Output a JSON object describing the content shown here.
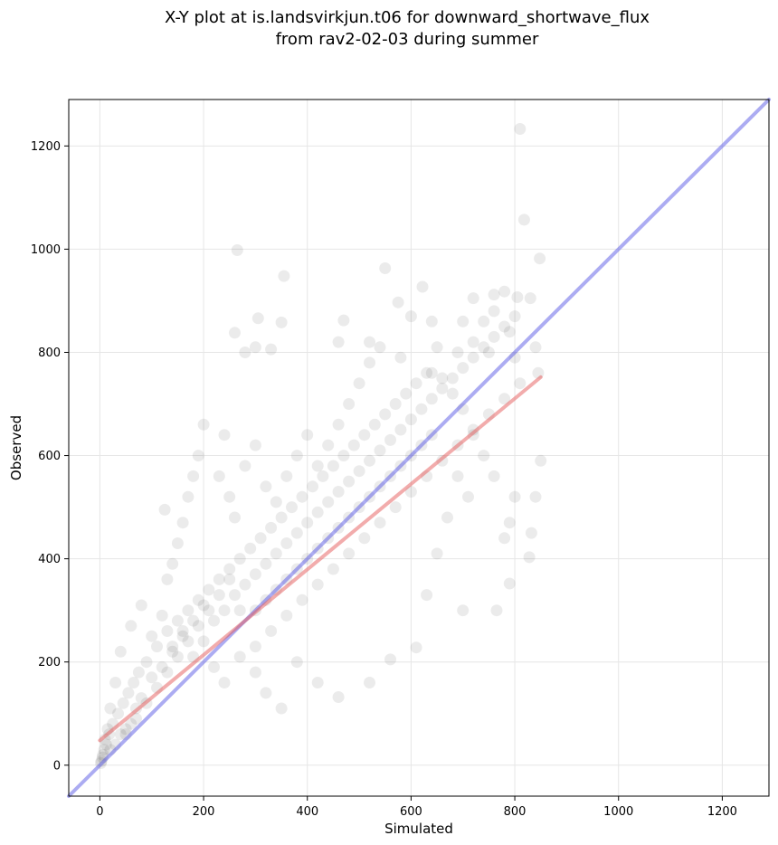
{
  "chart_data": {
    "type": "scatter",
    "title": "X-Y plot at is.landsvirkjun.t06 for downward_shortwave_flux",
    "subtitle": "from rav2-02-03 during summer",
    "xlabel": "Simulated",
    "ylabel": "Observed",
    "xlim": [
      -60,
      1290
    ],
    "ylim": [
      -60,
      1290
    ],
    "xticks": [
      0,
      200,
      400,
      600,
      800,
      1000,
      1200
    ],
    "yticks": [
      0,
      200,
      400,
      600,
      800,
      1000,
      1200
    ],
    "grid": true,
    "colors": {
      "points": "#000000",
      "identity_line": "#5a5ae6",
      "regression_line": "#e65a5a",
      "grid": "#e6e6e6"
    },
    "identity_line": {
      "x": [
        -60,
        1290
      ],
      "y": [
        -60,
        1290
      ]
    },
    "regression_line": {
      "x": [
        0,
        850
      ],
      "y": [
        48,
        752
      ]
    },
    "series": [
      {
        "marker": "circle",
        "opacity": 0.08,
        "points": [
          [
            810,
            1233
          ],
          [
            818,
            1057
          ],
          [
            848,
            982
          ],
          [
            265,
            998
          ],
          [
            355,
            948
          ],
          [
            550,
            963
          ],
          [
            622,
            927
          ],
          [
            575,
            897
          ],
          [
            720,
            905
          ],
          [
            760,
            912
          ],
          [
            780,
            918
          ],
          [
            805,
            907
          ],
          [
            830,
            905
          ],
          [
            305,
            866
          ],
          [
            350,
            858
          ],
          [
            470,
            862
          ],
          [
            260,
            838
          ],
          [
            520,
            820
          ],
          [
            600,
            870
          ],
          [
            640,
            860
          ],
          [
            700,
            860
          ],
          [
            740,
            860
          ],
          [
            760,
            880
          ],
          [
            790,
            840
          ],
          [
            840,
            810
          ],
          [
            280,
            800
          ],
          [
            300,
            810
          ],
          [
            330,
            806
          ],
          [
            460,
            820
          ],
          [
            540,
            810
          ],
          [
            580,
            790
          ],
          [
            650,
            810
          ],
          [
            690,
            800
          ],
          [
            720,
            820
          ],
          [
            750,
            800
          ],
          [
            800,
            790
          ],
          [
            845,
            760
          ],
          [
            850,
            590
          ],
          [
            840,
            520
          ],
          [
            832,
            450
          ],
          [
            828,
            403
          ],
          [
            790,
            352
          ],
          [
            765,
            300
          ],
          [
            700,
            300
          ],
          [
            800,
            520
          ],
          [
            790,
            470
          ],
          [
            780,
            440
          ],
          [
            760,
            560
          ],
          [
            740,
            600
          ],
          [
            720,
            640
          ],
          [
            700,
            690
          ],
          [
            680,
            720
          ],
          [
            660,
            750
          ],
          [
            640,
            760
          ],
          [
            710,
            520
          ],
          [
            690,
            560
          ],
          [
            670,
            480
          ],
          [
            650,
            410
          ],
          [
            630,
            330
          ],
          [
            610,
            228
          ],
          [
            560,
            205
          ],
          [
            520,
            160
          ],
          [
            460,
            132
          ],
          [
            420,
            160
          ],
          [
            380,
            200
          ],
          [
            350,
            110
          ],
          [
            320,
            140
          ],
          [
            300,
            180
          ],
          [
            270,
            210
          ],
          [
            240,
            160
          ],
          [
            220,
            190
          ],
          [
            200,
            240
          ],
          [
            180,
            210
          ],
          [
            160,
            260
          ],
          [
            140,
            230
          ],
          [
            120,
            290
          ],
          [
            100,
            250
          ],
          [
            80,
            310
          ],
          [
            60,
            270
          ],
          [
            40,
            220
          ],
          [
            30,
            160
          ],
          [
            20,
            110
          ],
          [
            15,
            70
          ],
          [
            10,
            50
          ],
          [
            8,
            30
          ],
          [
            5,
            15
          ],
          [
            3,
            8
          ],
          [
            2,
            4
          ],
          [
            6,
            20
          ],
          [
            12,
            40
          ],
          [
            18,
            60
          ],
          [
            25,
            80
          ],
          [
            35,
            100
          ],
          [
            45,
            120
          ],
          [
            55,
            140
          ],
          [
            65,
            160
          ],
          [
            75,
            180
          ],
          [
            90,
            200
          ],
          [
            110,
            230
          ],
          [
            130,
            260
          ],
          [
            150,
            280
          ],
          [
            170,
            300
          ],
          [
            190,
            320
          ],
          [
            210,
            340
          ],
          [
            230,
            360
          ],
          [
            250,
            380
          ],
          [
            270,
            400
          ],
          [
            290,
            420
          ],
          [
            310,
            440
          ],
          [
            330,
            460
          ],
          [
            350,
            480
          ],
          [
            370,
            500
          ],
          [
            390,
            520
          ],
          [
            410,
            540
          ],
          [
            430,
            560
          ],
          [
            450,
            580
          ],
          [
            470,
            600
          ],
          [
            490,
            620
          ],
          [
            510,
            640
          ],
          [
            530,
            660
          ],
          [
            550,
            680
          ],
          [
            570,
            700
          ],
          [
            590,
            720
          ],
          [
            610,
            740
          ],
          [
            630,
            760
          ],
          [
            200,
            660
          ],
          [
            190,
            600
          ],
          [
            180,
            560
          ],
          [
            170,
            520
          ],
          [
            160,
            470
          ],
          [
            150,
            430
          ],
          [
            140,
            390
          ],
          [
            130,
            360
          ],
          [
            125,
            495
          ],
          [
            250,
            520
          ],
          [
            240,
            640
          ],
          [
            230,
            560
          ],
          [
            260,
            480
          ],
          [
            280,
            580
          ],
          [
            300,
            620
          ],
          [
            320,
            540
          ],
          [
            340,
            510
          ],
          [
            360,
            560
          ],
          [
            380,
            600
          ],
          [
            400,
            640
          ],
          [
            420,
            580
          ],
          [
            440,
            620
          ],
          [
            460,
            660
          ],
          [
            480,
            700
          ],
          [
            500,
            740
          ],
          [
            520,
            780
          ],
          [
            300,
            300
          ],
          [
            320,
            320
          ],
          [
            340,
            340
          ],
          [
            360,
            360
          ],
          [
            380,
            380
          ],
          [
            400,
            400
          ],
          [
            420,
            420
          ],
          [
            440,
            440
          ],
          [
            460,
            460
          ],
          [
            480,
            480
          ],
          [
            500,
            500
          ],
          [
            520,
            520
          ],
          [
            540,
            540
          ],
          [
            560,
            560
          ],
          [
            580,
            580
          ],
          [
            600,
            600
          ],
          [
            620,
            620
          ],
          [
            640,
            640
          ],
          [
            300,
            230
          ],
          [
            330,
            260
          ],
          [
            360,
            290
          ],
          [
            390,
            320
          ],
          [
            420,
            350
          ],
          [
            450,
            380
          ],
          [
            480,
            410
          ],
          [
            510,
            440
          ],
          [
            540,
            470
          ],
          [
            570,
            500
          ],
          [
            600,
            530
          ],
          [
            630,
            560
          ],
          [
            660,
            590
          ],
          [
            690,
            620
          ],
          [
            720,
            650
          ],
          [
            750,
            680
          ],
          [
            780,
            710
          ],
          [
            810,
            740
          ],
          [
            50,
            60
          ],
          [
            70,
            90
          ],
          [
            90,
            120
          ],
          [
            110,
            150
          ],
          [
            130,
            180
          ],
          [
            150,
            210
          ],
          [
            170,
            240
          ],
          [
            190,
            270
          ],
          [
            210,
            300
          ],
          [
            230,
            330
          ],
          [
            250,
            360
          ],
          [
            270,
            300
          ],
          [
            20,
            30
          ],
          [
            30,
            40
          ],
          [
            40,
            60
          ],
          [
            50,
            70
          ],
          [
            60,
            80
          ],
          [
            70,
            110
          ],
          [
            80,
            130
          ],
          [
            100,
            170
          ],
          [
            120,
            190
          ],
          [
            140,
            220
          ],
          [
            160,
            250
          ],
          [
            180,
            280
          ],
          [
            200,
            310
          ],
          [
            220,
            280
          ],
          [
            240,
            300
          ],
          [
            260,
            330
          ],
          [
            280,
            350
          ],
          [
            300,
            370
          ],
          [
            320,
            390
          ],
          [
            340,
            410
          ],
          [
            360,
            430
          ],
          [
            380,
            450
          ],
          [
            400,
            470
          ],
          [
            420,
            490
          ],
          [
            440,
            510
          ],
          [
            460,
            530
          ],
          [
            480,
            550
          ],
          [
            500,
            570
          ],
          [
            520,
            590
          ],
          [
            540,
            610
          ],
          [
            560,
            630
          ],
          [
            580,
            650
          ],
          [
            600,
            670
          ],
          [
            620,
            690
          ],
          [
            640,
            710
          ],
          [
            660,
            730
          ],
          [
            680,
            750
          ],
          [
            700,
            770
          ],
          [
            720,
            790
          ],
          [
            740,
            810
          ],
          [
            760,
            830
          ],
          [
            780,
            850
          ],
          [
            800,
            870
          ]
        ]
      }
    ]
  }
}
